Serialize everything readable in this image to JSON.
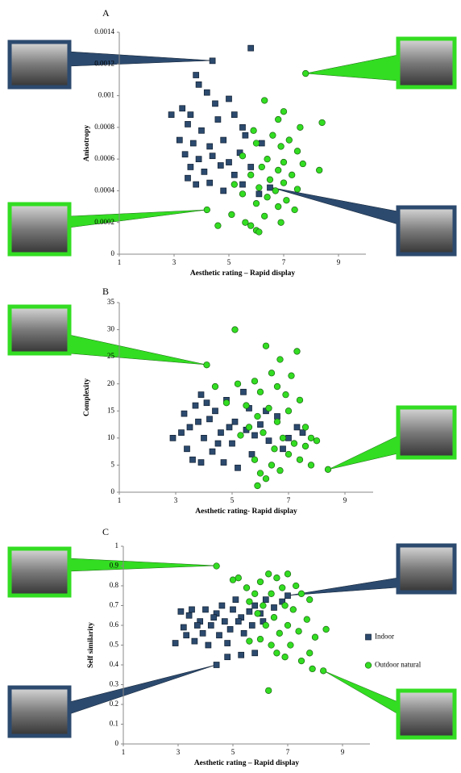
{
  "chart_data": [
    {
      "type": "scatter",
      "title": "A",
      "x_label": "Aesthetic rating – Rapid display",
      "y_label": "Anisotropy",
      "xlim": [
        1,
        10
      ],
      "xticks": [
        1,
        3,
        5,
        7,
        9
      ],
      "ylim": [
        0,
        0.0014
      ],
      "yticks": [
        0,
        0.0002,
        0.0004,
        0.0006,
        0.0008,
        0.001,
        0.0012,
        0.0014
      ],
      "series": [
        {
          "marker": "square",
          "color": "#2c4a6e",
          "x": [
            4.4,
            5.8,
            2.9,
            3.8,
            3.9,
            4.2,
            3.3,
            3.6,
            4.5,
            5.0,
            3.5,
            4.0,
            4.6,
            5.2,
            5.5,
            3.2,
            3.7,
            4.3,
            4.8,
            5.6,
            6.2,
            3.4,
            3.9,
            4.4,
            5.0,
            5.4,
            3.6,
            4.1,
            4.7,
            5.8,
            3.5,
            4.3,
            5.2,
            3.8,
            6.5,
            5.5,
            4.8,
            6.1
          ],
          "values": [
            0.00122,
            0.0013,
            0.00088,
            0.00113,
            0.00107,
            0.00102,
            0.00092,
            0.00088,
            0.00095,
            0.00098,
            0.00082,
            0.00078,
            0.00085,
            0.00088,
            0.0008,
            0.00072,
            0.0007,
            0.00068,
            0.00072,
            0.00075,
            0.0007,
            0.00063,
            0.0006,
            0.00062,
            0.00058,
            0.00064,
            0.00055,
            0.00052,
            0.00056,
            0.00055,
            0.00048,
            0.00045,
            0.0005,
            0.00044,
            0.00042,
            0.00044,
            0.0004,
            0.00038
          ]
        },
        {
          "marker": "circle",
          "color": "#33dd22",
          "x": [
            7.8,
            6.3,
            7.0,
            6.8,
            8.4,
            7.6,
            5.9,
            6.6,
            7.2,
            6.0,
            6.9,
            7.5,
            5.5,
            6.4,
            7.0,
            7.7,
            6.2,
            6.8,
            8.3,
            5.8,
            7.3,
            6.5,
            7.0,
            5.2,
            6.1,
            6.7,
            7.5,
            5.5,
            6.4,
            7.1,
            6.0,
            6.8,
            7.4,
            4.2,
            5.1,
            6.3,
            6.9,
            5.6,
            6.0,
            4.6,
            6.1,
            5.8
          ],
          "values": [
            0.00114,
            0.00097,
            0.0009,
            0.00085,
            0.00083,
            0.0008,
            0.00078,
            0.00075,
            0.00072,
            0.0007,
            0.00068,
            0.00065,
            0.00062,
            0.0006,
            0.00058,
            0.00057,
            0.00055,
            0.00053,
            0.00053,
            0.0005,
            0.0005,
            0.00047,
            0.00045,
            0.00044,
            0.00042,
            0.0004,
            0.00041,
            0.00038,
            0.00036,
            0.00034,
            0.00032,
            0.0003,
            0.00028,
            0.00028,
            0.00025,
            0.00024,
            0.0002,
            0.0002,
            0.00015,
            0.00018,
            0.00014,
            0.00018
          ]
        }
      ]
    },
    {
      "type": "scatter",
      "title": "B",
      "x_label": "Aesthetic rating- Rapid display",
      "y_label": "Complexity",
      "xlim": [
        1,
        10
      ],
      "xticks": [
        1,
        3,
        5,
        7,
        9
      ],
      "ylim": [
        0,
        35
      ],
      "yticks": [
        0,
        5,
        10,
        15,
        20,
        25,
        30,
        35
      ],
      "series": [
        {
          "marker": "square",
          "color": "#2c4a6e",
          "x": [
            2.9,
            3.3,
            3.5,
            3.7,
            3.9,
            3.4,
            3.6,
            4.0,
            4.2,
            4.4,
            4.6,
            4.8,
            5.0,
            5.1,
            5.4,
            5.6,
            3.8,
            4.3,
            4.7,
            5.2,
            5.8,
            6.0,
            6.3,
            6.6,
            7.0,
            7.3,
            3.2,
            4.5,
            5.5,
            6.2,
            3.9,
            4.9,
            5.7,
            6.8,
            7.5,
            4.1
          ],
          "values": [
            10,
            14.5,
            12,
            16,
            18,
            8,
            6,
            10,
            13.5,
            15,
            11,
            17,
            9,
            13,
            18.5,
            15.5,
            13,
            7.5,
            5.5,
            4.5,
            10.5,
            12.5,
            9.5,
            14,
            10,
            12,
            11,
            9,
            11.5,
            15,
            5.5,
            12,
            7,
            8,
            11,
            16.5
          ]
        },
        {
          "marker": "circle",
          "color": "#33dd22",
          "x": [
            4.1,
            5.1,
            6.2,
            6.7,
            7.3,
            6.4,
            7.1,
            5.8,
            5.2,
            6.0,
            6.9,
            7.4,
            5.5,
            6.3,
            7.0,
            4.4,
            5.9,
            6.6,
            7.6,
            5.6,
            6.1,
            7.8,
            6.8,
            5.3,
            7.2,
            8.0,
            8.4,
            6.5,
            7.0,
            5.8,
            6.4,
            7.4,
            6.0,
            7.8,
            6.2,
            5.9,
            6.7,
            7.6,
            4.8,
            6.6
          ],
          "values": [
            23.5,
            30,
            27,
            24.5,
            26,
            22,
            21.5,
            20.5,
            20,
            18.5,
            18,
            17,
            16,
            15.5,
            15,
            19.5,
            14,
            13,
            12,
            12,
            11,
            10,
            10,
            10.5,
            9,
            9.5,
            4.2,
            8,
            7,
            6,
            5,
            6,
            3.5,
            5,
            2.5,
            1.2,
            4,
            8.5,
            16.5,
            19.5
          ]
        }
      ]
    },
    {
      "type": "scatter",
      "title": "C",
      "x_label": "Aesthetic rating – Rapid display",
      "y_label": "Self similarity",
      "xlim": [
        1,
        10
      ],
      "xticks": [
        1,
        3,
        5,
        7,
        9
      ],
      "ylim": [
        0,
        1
      ],
      "yticks": [
        0,
        0.1,
        0.2,
        0.3,
        0.4,
        0.5,
        0.6,
        0.7,
        0.8,
        0.9,
        1
      ],
      "legend": "right",
      "series": [
        {
          "name": "Indoor",
          "marker": "square",
          "color": "#2c4a6e",
          "x": [
            4.4,
            4.8,
            5.3,
            5.8,
            2.9,
            3.2,
            3.4,
            3.5,
            3.6,
            3.8,
            3.9,
            4.0,
            4.1,
            4.2,
            4.4,
            4.5,
            4.6,
            4.7,
            4.9,
            5.0,
            5.1,
            5.3,
            5.4,
            5.6,
            5.8,
            6.0,
            6.2,
            6.5,
            6.8,
            7.0,
            3.3,
            3.7,
            4.3,
            5.2,
            6.1,
            3.1,
            4.8,
            5.7
          ],
          "values": [
            0.4,
            0.44,
            0.45,
            0.46,
            0.51,
            0.59,
            0.65,
            0.68,
            0.52,
            0.62,
            0.56,
            0.68,
            0.5,
            0.6,
            0.66,
            0.55,
            0.7,
            0.62,
            0.58,
            0.68,
            0.73,
            0.64,
            0.56,
            0.67,
            0.7,
            0.66,
            0.73,
            0.69,
            0.72,
            0.75,
            0.55,
            0.6,
            0.64,
            0.62,
            0.62,
            0.67,
            0.51,
            0.6
          ]
        },
        {
          "name": "Outdoor natural",
          "marker": "circle",
          "color": "#33dd22",
          "x": [
            4.4,
            5.0,
            5.2,
            5.5,
            6.0,
            6.3,
            6.6,
            7.0,
            7.3,
            6.8,
            5.8,
            6.4,
            7.5,
            7.8,
            5.6,
            6.1,
            6.9,
            7.2,
            5.9,
            6.5,
            7.7,
            6.2,
            7.0,
            7.4,
            6.7,
            8.0,
            6.0,
            7.1,
            6.6,
            7.8,
            8.4,
            6.9,
            7.5,
            7.9,
            8.3,
            6.3,
            5.6,
            6.4
          ],
          "values": [
            0.9,
            0.83,
            0.84,
            0.79,
            0.82,
            0.86,
            0.84,
            0.86,
            0.8,
            0.79,
            0.76,
            0.76,
            0.76,
            0.73,
            0.72,
            0.7,
            0.7,
            0.68,
            0.66,
            0.64,
            0.63,
            0.6,
            0.6,
            0.57,
            0.56,
            0.54,
            0.53,
            0.5,
            0.46,
            0.46,
            0.58,
            0.44,
            0.42,
            0.38,
            0.37,
            0.27,
            0.52,
            0.5
          ]
        }
      ]
    }
  ]
}
